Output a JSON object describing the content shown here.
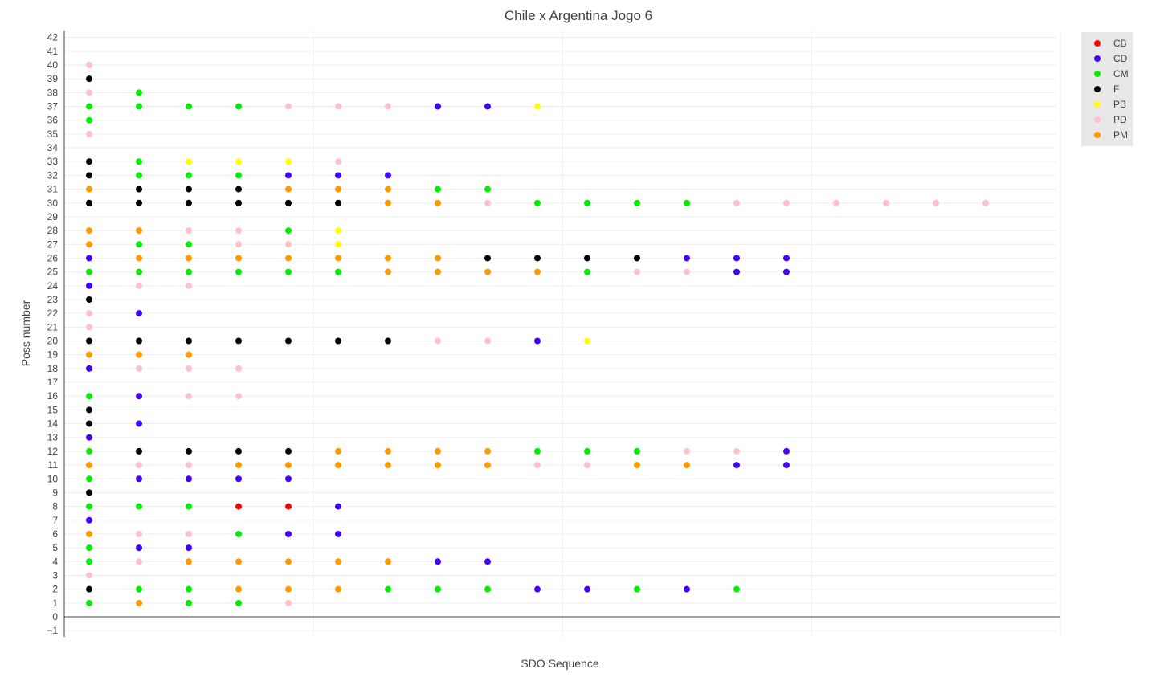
{
  "chart_data": {
    "type": "scatter",
    "title": "Chile  x Argentina Jogo 6",
    "xlabel": "SDO Sequence",
    "ylabel": "Poss number",
    "xlim": [
      -0.5,
      19.5
    ],
    "ylim": [
      -1,
      42.5
    ],
    "yticks": [
      -1,
      0,
      1,
      2,
      3,
      4,
      5,
      6,
      7,
      8,
      9,
      10,
      11,
      12,
      13,
      14,
      15,
      16,
      17,
      18,
      19,
      20,
      21,
      22,
      23,
      24,
      25,
      26,
      27,
      28,
      29,
      30,
      31,
      32,
      33,
      34,
      35,
      36,
      37,
      38,
      39,
      40,
      41,
      42
    ],
    "grid": true,
    "legend_position": "top-right",
    "colors": {
      "CB": "#ff0000",
      "CD": "#4400ff",
      "CM": "#00ee00",
      "F": "#000000",
      "PB": "#ffff00",
      "PD": "#ffc0cb",
      "PM": "#ff9900"
    },
    "legend": [
      "CB",
      "CD",
      "CM",
      "F",
      "PB",
      "PD",
      "PM"
    ],
    "possessions": {
      "1": [
        "CM",
        "PM",
        "CM",
        "CM",
        "PD"
      ],
      "2": [
        "F",
        "CM",
        "CM",
        "PM",
        "PM",
        "PM",
        "CM",
        "CM",
        "CM",
        "CD",
        "CD",
        "CM",
        "CD",
        "CM"
      ],
      "3": [
        "PD"
      ],
      "4": [
        "CM",
        "PD",
        "PM",
        "PM",
        "PM",
        "PM",
        "PM",
        "CD",
        "CD"
      ],
      "5": [
        "CM",
        "CD",
        "CD"
      ],
      "6": [
        "PM",
        "PD",
        "PD",
        "CM",
        "CD",
        "CD"
      ],
      "7": [
        "CD"
      ],
      "8": [
        "CM",
        "CM",
        "CM",
        "CB",
        "CB",
        "CD"
      ],
      "9": [
        "F"
      ],
      "10": [
        "CM",
        "CD",
        "CD",
        "CD",
        "CD"
      ],
      "11": [
        "PM",
        "PD",
        "PD",
        "PM",
        "PM",
        "PM",
        "PM",
        "PM",
        "PM",
        "PD",
        "PD",
        "PM",
        "PM",
        "CD",
        "CD"
      ],
      "12": [
        "CM",
        "F",
        "F",
        "F",
        "F",
        "PM",
        "PM",
        "PM",
        "PM",
        "CM",
        "CM",
        "CM",
        "PD",
        "PD",
        "CD"
      ],
      "13": [
        "CD"
      ],
      "14": [
        "F",
        "CD"
      ],
      "15": [
        "F"
      ],
      "16": [
        "CM",
        "CD",
        "PD",
        "PD"
      ],
      "18": [
        "CD",
        "PD",
        "PD",
        "PD"
      ],
      "19": [
        "PM",
        "PM",
        "PM"
      ],
      "20": [
        "F",
        "F",
        "F",
        "F",
        "F",
        "F",
        "F",
        "PD",
        "PD",
        "CD",
        "PB"
      ],
      "21": [
        "PD"
      ],
      "22": [
        "PD",
        "CD"
      ],
      "23": [
        "F"
      ],
      "24": [
        "CD",
        "PD",
        "PD"
      ],
      "25": [
        "CM",
        "CM",
        "CM",
        "CM",
        "CM",
        "CM",
        "PM",
        "PM",
        "PM",
        "PM",
        "CM",
        "PD",
        "PD",
        "CD",
        "CD"
      ],
      "26": [
        "CD",
        "PM",
        "PM",
        "PM",
        "PM",
        "PM",
        "PM",
        "PM",
        "F",
        "F",
        "F",
        "F",
        "CD",
        "CD",
        "CD"
      ],
      "27": [
        "PM",
        "CM",
        "CM",
        "PD",
        "PD",
        "PB"
      ],
      "28": [
        "PM",
        "PM",
        "PD",
        "PD",
        "CM",
        "PB"
      ],
      "30": [
        "F",
        "F",
        "F",
        "F",
        "F",
        "F",
        "PM",
        "PM",
        "PD",
        "CM",
        "CM",
        "CM",
        "CM",
        "PD",
        "PD",
        "PD",
        "PD",
        "PD",
        "PD"
      ],
      "31": [
        "PM",
        "F",
        "F",
        "F",
        "PM",
        "PM",
        "PM",
        "CM",
        "CM"
      ],
      "32": [
        "F",
        "CM",
        "CM",
        "CM",
        "CD",
        "CD",
        "CD"
      ],
      "33": [
        "F",
        "CM",
        "PB",
        "PB",
        "PB",
        "PD"
      ],
      "35": [
        "PD"
      ],
      "36": [
        "CM"
      ],
      "37": [
        "CM",
        "CM",
        "CM",
        "CM",
        "PD",
        "PD",
        "PD",
        "CD",
        "CD",
        "PB"
      ],
      "38": [
        "PD",
        "CM"
      ],
      "39": [
        "F"
      ],
      "40": [
        "PD"
      ]
    }
  }
}
